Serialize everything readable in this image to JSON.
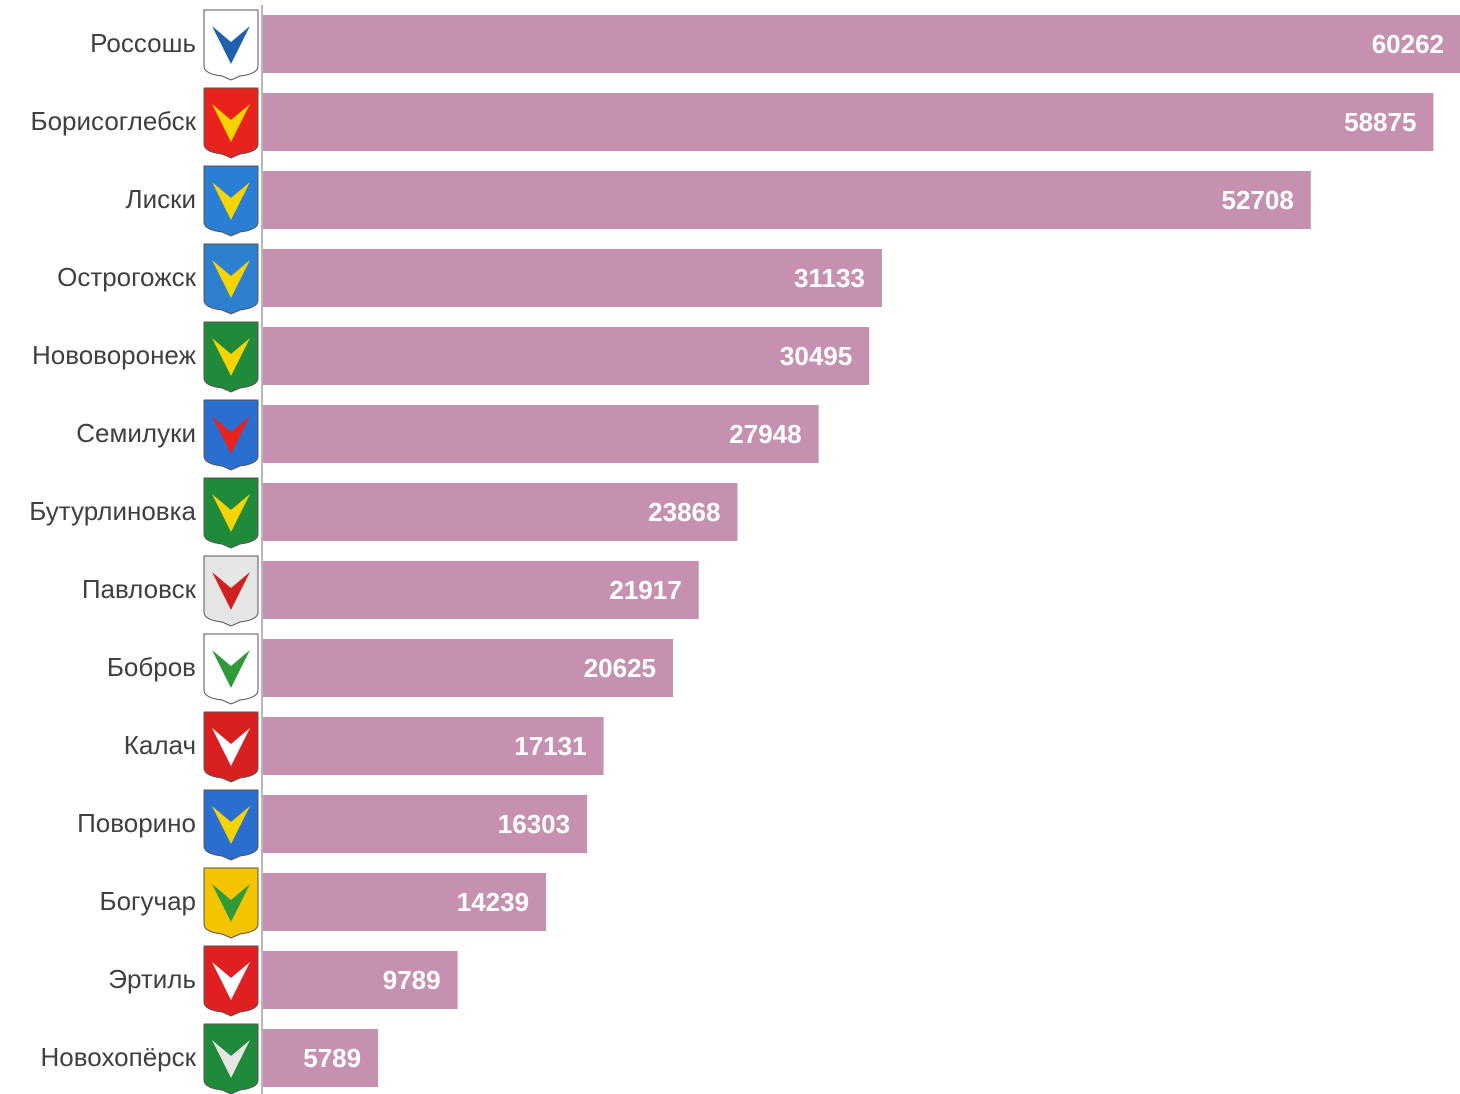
{
  "chart_data": {
    "type": "bar",
    "orientation": "horizontal",
    "color": "#c690b0",
    "categories": [
      "Россошь",
      "Борисоглебск",
      "Лиски",
      "Острогожск",
      "Нововоронеж",
      "Семилуки",
      "Бутурлиновка",
      "Павловск",
      "Бобров",
      "Калач",
      "Поворино",
      "Богучар",
      "Эртиль",
      "Новохопёрск"
    ],
    "values": [
      60262,
      58875,
      52708,
      31133,
      30495,
      27948,
      23868,
      21917,
      20625,
      17131,
      16303,
      14239,
      9789,
      5789
    ]
  }
}
